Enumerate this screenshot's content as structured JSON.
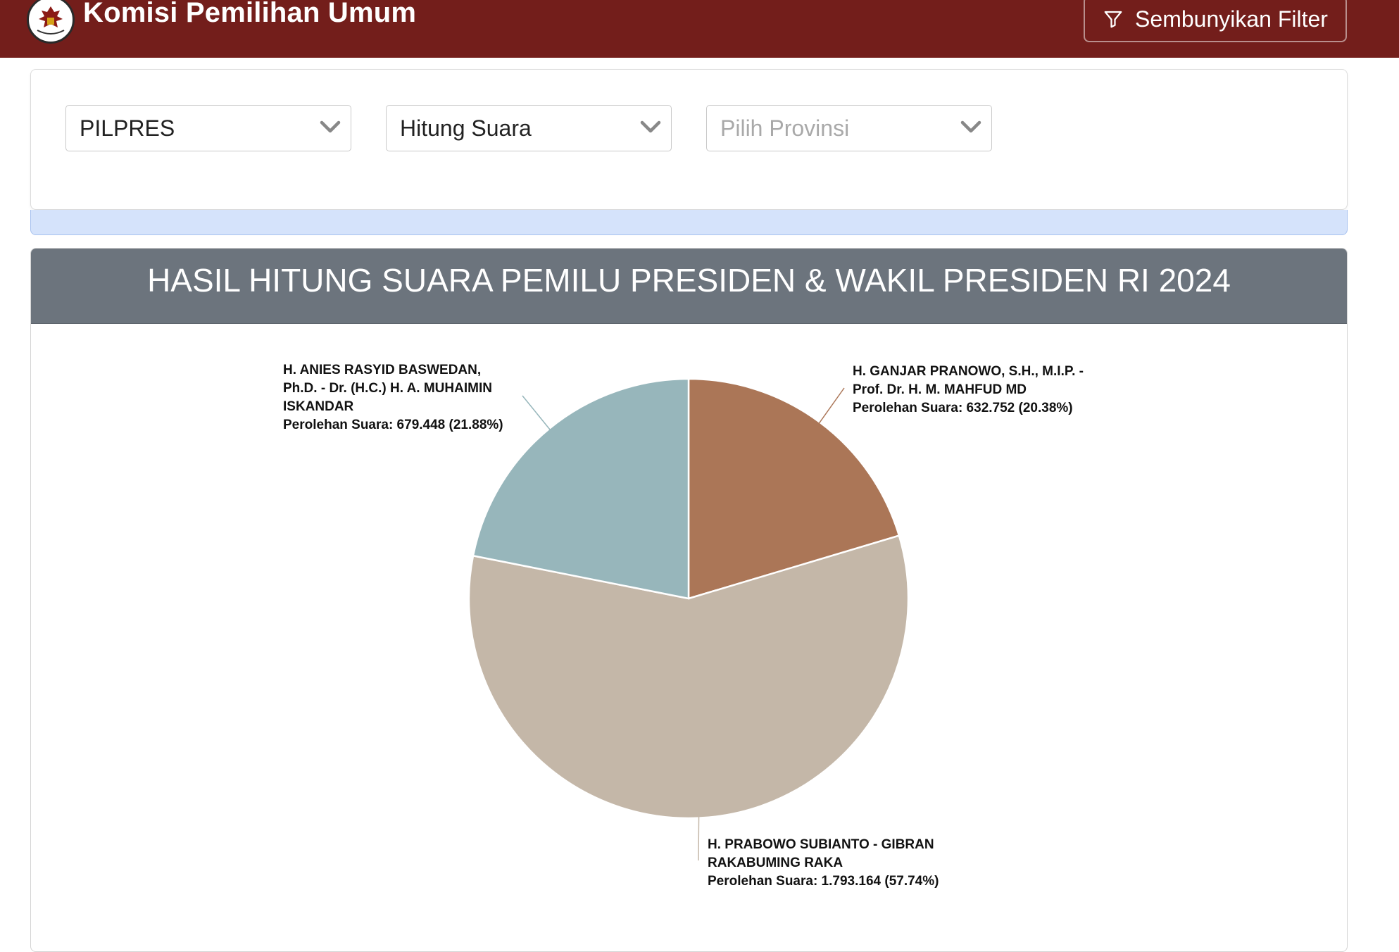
{
  "header": {
    "app_title": "Komisi Pemilihan Umum",
    "filter_toggle_label": "Sembunyikan Filter"
  },
  "filters": [
    {
      "value": "PILPRES",
      "is_placeholder": false
    },
    {
      "value": "Hitung Suara",
      "is_placeholder": false
    },
    {
      "value": "Pilih Provinsi",
      "is_placeholder": true
    }
  ],
  "result": {
    "title": "HASIL HITUNG SUARA PEMILU PRESIDEN & WAKIL PRESIDEN RI 2024"
  },
  "chart_data": {
    "type": "pie",
    "title": "",
    "slices": [
      {
        "name_lines": [
          "H. GANJAR PRANOWO, S.H., M.I.P. -",
          "Prof. Dr. H. M. MAHFUD MD"
        ],
        "value_label": "Perolehan Suara: 632.752 (20.38%)",
        "votes": 632752,
        "percent": 20.38,
        "color": "#ab7657"
      },
      {
        "name_lines": [
          "H. PRABOWO SUBIANTO - GIBRAN",
          "RAKABUMING RAKA"
        ],
        "value_label": "Perolehan Suara: 1.793.164 (57.74%)",
        "votes": 1793164,
        "percent": 57.74,
        "color": "#c4b7a8"
      },
      {
        "name_lines": [
          "H. ANIES RASYID BASWEDAN,",
          "Ph.D. - Dr. (H.C.) H. A. MUHAIMIN",
          "ISKANDAR"
        ],
        "value_label": "Perolehan Suara: 679.448 (21.88%)",
        "votes": 679448,
        "percent": 21.88,
        "color": "#97b6bb"
      }
    ]
  }
}
